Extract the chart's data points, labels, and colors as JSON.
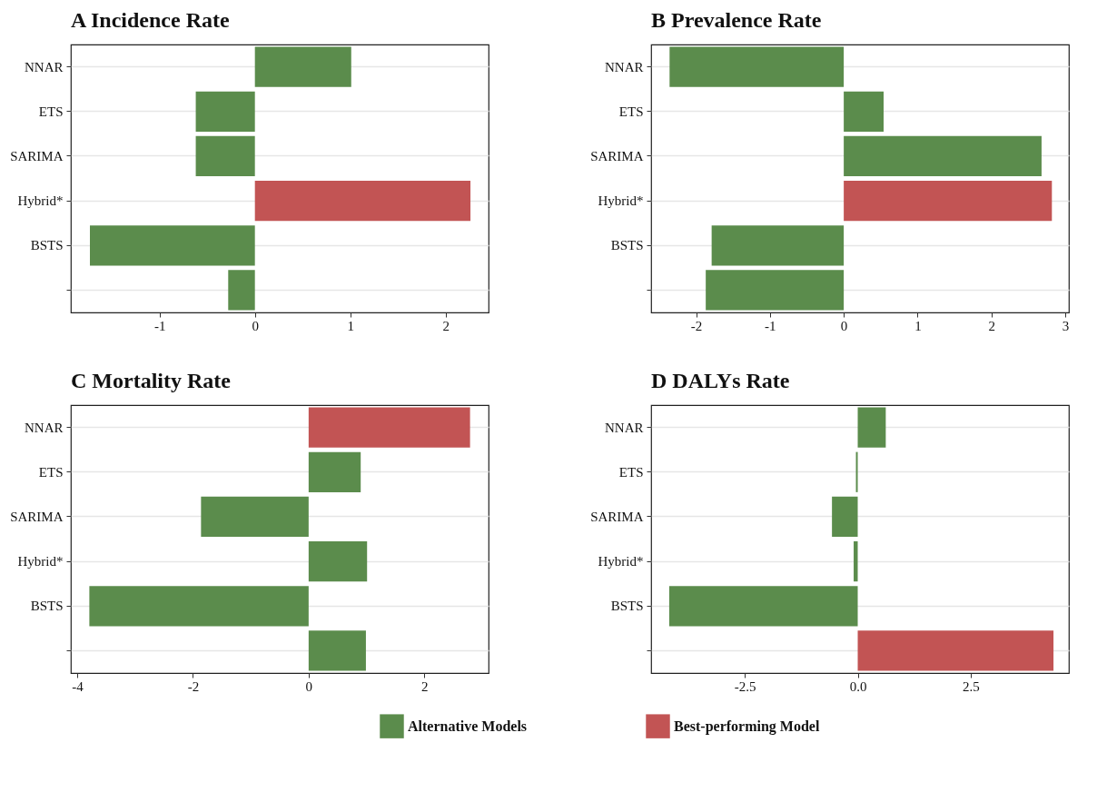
{
  "chart_data": [
    {
      "type": "bar",
      "orientation": "horizontal",
      "title": "A Incidence Rate",
      "categories": [
        "NNAR",
        "ETS",
        "SARIMA",
        "Hybrid*",
        "BSTS",
        null
      ],
      "grid": "y",
      "legend": "bottom",
      "xlim": [
        -1.93,
        2.45
      ],
      "xticks": [
        -1,
        0,
        1,
        2
      ],
      "series": [
        {
          "name": "Alternative Models",
          "color": "#5b8c4c",
          "values": [
            1.01,
            -0.62,
            -0.62,
            null,
            -1.73,
            -0.28
          ]
        },
        {
          "name": "Best-performing Model",
          "color": "#c25454",
          "values": [
            null,
            null,
            null,
            2.26,
            null,
            null
          ]
        }
      ]
    },
    {
      "type": "bar",
      "orientation": "horizontal",
      "title": "B Prevalence Rate",
      "categories": [
        "NNAR",
        "ETS",
        "SARIMA",
        "Hybrid*",
        "BSTS",
        null
      ],
      "grid": "y",
      "xlim": [
        -2.61,
        3.05
      ],
      "xticks": [
        -2,
        -1,
        0,
        1,
        2,
        3
      ],
      "series": [
        {
          "name": "Alternative Models",
          "color": "#5b8c4c",
          "values": [
            -2.36,
            0.54,
            2.68,
            null,
            -1.79,
            -1.87
          ]
        },
        {
          "name": "Best-performing Model",
          "color": "#c25454",
          "values": [
            null,
            null,
            null,
            2.82,
            null,
            null
          ]
        }
      ]
    },
    {
      "type": "bar",
      "orientation": "horizontal",
      "title": "C Mortality Rate",
      "categories": [
        "NNAR",
        "ETS",
        "SARIMA",
        "Hybrid*",
        "BSTS",
        null
      ],
      "grid": "y",
      "xlim": [
        -4.11,
        3.11
      ],
      "xticks": [
        -4,
        -2,
        0,
        2
      ],
      "series": [
        {
          "name": "Alternative Models",
          "color": "#5b8c4c",
          "values": [
            null,
            0.9,
            -1.86,
            1.01,
            -3.79,
            0.99
          ]
        },
        {
          "name": "Best-performing Model",
          "color": "#c25454",
          "values": [
            2.79,
            null,
            null,
            null,
            null,
            null
          ]
        }
      ]
    },
    {
      "type": "bar",
      "orientation": "horizontal",
      "title": "D DALYs Rate",
      "categories": [
        "NNAR",
        "ETS",
        "SARIMA",
        "Hybrid*",
        "BSTS",
        null
      ],
      "grid": "y",
      "xlim": [
        -4.57,
        4.67
      ],
      "xticks": [
        -2.5,
        {
          "value": 0,
          "label": "0.0"
        },
        2.5
      ],
      "series": [
        {
          "name": "Alternative Models",
          "color": "#5b8c4c",
          "values": [
            0.62,
            -0.04,
            -0.57,
            -0.09,
            -4.17,
            null
          ]
        },
        {
          "name": "Best-performing Model",
          "color": "#c25454",
          "values": [
            null,
            null,
            null,
            null,
            null,
            4.33
          ]
        }
      ]
    }
  ]
}
